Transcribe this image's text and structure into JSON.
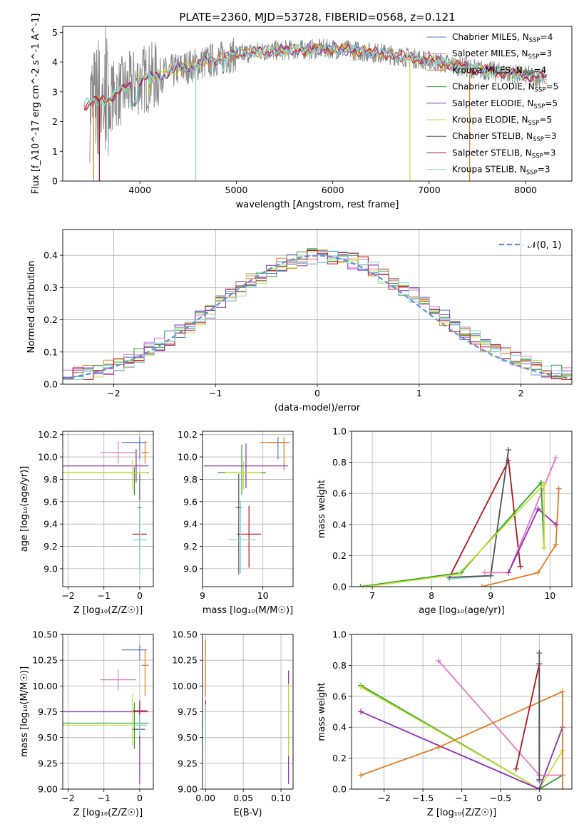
{
  "figure": {
    "title": "PLATE=2360, MJD=53728, FIBERID=0568, z=0.121"
  },
  "colors": {
    "chabrier_miles": "#4c78c8",
    "salpeter_miles": "#e377c2",
    "kroupa_miles": "#e07b22",
    "chabrier_elodie": "#2ca02c",
    "salpeter_elodie": "#8e2bb5",
    "kroupa_elodie": "#c6e036",
    "chabrier_stelib": "#555555",
    "salpeter_stelib": "#b5121b",
    "kroupa_stelib": "#7fd6e0",
    "data_grey": "#888888",
    "normal_curve": "#5b8fd8"
  },
  "chart_data": [
    {
      "id": "spectrum",
      "type": "line",
      "title": "PLATE=2360, MJD=53728, FIBERID=0568, z=0.121",
      "xlabel": "wavelength [Angstrom, rest frame]",
      "ylabel": "Flux [f_λ10^-17 erg cm^-2 s^-1 A^-1]",
      "xlim": [
        3200,
        8480
      ],
      "ylim": [
        0,
        5.2
      ],
      "xticks": [
        4000,
        5000,
        6000,
        7000,
        8000
      ],
      "yticks": [
        0,
        1,
        2,
        3,
        4,
        5
      ],
      "grid": false,
      "legend_position": "top-right",
      "legend": [
        {
          "label": "Chabrier MILES, N",
          "sub": "SSP",
          "suffix": "=4"
        },
        {
          "label": "Salpeter MILES, N",
          "sub": "SSP",
          "suffix": "=3"
        },
        {
          "label": "Kroupa MILES, N",
          "sub": "SSP",
          "suffix": "=4"
        },
        {
          "label": "Chabrier ELODIE, N",
          "sub": "SSP",
          "suffix": "=5"
        },
        {
          "label": "Salpeter ELODIE, N",
          "sub": "SSP",
          "suffix": "=5"
        },
        {
          "label": "Kroupa ELODIE, N",
          "sub": "SSP",
          "suffix": "=5"
        },
        {
          "label": "Chabrier STELIB, N",
          "sub": "SSP",
          "suffix": "=3"
        },
        {
          "label": "Salpeter STELIB, N",
          "sub": "SSP",
          "suffix": "=3"
        },
        {
          "label": "Kroupa STELIB, N",
          "sub": "SSP",
          "suffix": "=3"
        }
      ],
      "continuum_points": [
        [
          3400,
          2.55
        ],
        [
          3600,
          2.7
        ],
        [
          3800,
          3.0
        ],
        [
          4000,
          3.4
        ],
        [
          4200,
          3.55
        ],
        [
          4500,
          3.85
        ],
        [
          4800,
          4.1
        ],
        [
          5000,
          4.25
        ],
        [
          5200,
          4.35
        ],
        [
          5500,
          4.4
        ],
        [
          6000,
          4.45
        ],
        [
          6500,
          4.3
        ],
        [
          7000,
          4.05
        ],
        [
          7500,
          3.75
        ],
        [
          8000,
          3.55
        ],
        [
          8200,
          3.45
        ]
      ]
    },
    {
      "id": "residuals",
      "type": "line",
      "xlabel": "(data-model)/error",
      "ylabel": "Normed distribution",
      "xlim": [
        -2.5,
        2.5
      ],
      "ylim": [
        0,
        0.48
      ],
      "xticks": [
        -2,
        -1,
        0,
        1,
        2
      ],
      "yticks": [
        0.0,
        0.1,
        0.2,
        0.3,
        0.4
      ],
      "grid": true,
      "legend_position": "top-right",
      "legend": [
        {
          "label": "𝒩(0, 1)"
        }
      ],
      "bin_width": 0.1
    },
    {
      "id": "age_vs_Z",
      "type": "scatter",
      "xlabel": "Z [log₁₀(Z/Z☉)]",
      "ylabel": "age  [log₁₀(age/yr)]",
      "xlim": [
        -2.15,
        0.38
      ],
      "ylim": [
        8.84,
        10.23
      ],
      "xticks": [
        -2,
        -1,
        0
      ],
      "yticks": [
        9.0,
        9.2,
        9.4,
        9.6,
        9.8,
        10.0,
        10.2
      ],
      "grid": true,
      "points": [
        {
          "model": "chabrier_miles",
          "x": 0.0,
          "y": 10.13,
          "xerr": [
            0.5,
            0.2
          ],
          "yerr": [
            0.15,
            0.05
          ]
        },
        {
          "model": "salpeter_miles",
          "x": -0.6,
          "y": 10.04,
          "xerr": [
            0.5,
            0.5
          ],
          "yerr": [
            0.1,
            0.1
          ]
        },
        {
          "model": "kroupa_miles",
          "x": 0.15,
          "y": 10.04,
          "xerr": [
            0.1,
            0.1
          ],
          "yerr": [
            0.1,
            0.1
          ]
        },
        {
          "model": "chabrier_elodie",
          "x": -0.15,
          "y": 9.86,
          "xerr": [
            2.1,
            0.4
          ],
          "yerr": [
            0.2,
            0.05
          ]
        },
        {
          "model": "salpeter_elodie",
          "x": -0.1,
          "y": 9.92,
          "xerr": [
            2.1,
            0.35
          ],
          "yerr": [
            0.15,
            0.15
          ]
        },
        {
          "model": "kroupa_elodie",
          "x": -0.2,
          "y": 9.86,
          "xerr": [
            2.0,
            0.4
          ],
          "yerr": [
            0.15,
            0.12
          ]
        },
        {
          "model": "chabrier_stelib",
          "x": 0.0,
          "y": 9.55,
          "xerr": [
            0.05,
            0.05
          ],
          "yerr": [
            0.35,
            0.3
          ]
        },
        {
          "model": "salpeter_stelib",
          "x": 0.0,
          "y": 9.31,
          "xerr": [
            0.2,
            0.2
          ],
          "yerr": [
            0.3,
            0.25
          ]
        },
        {
          "model": "kroupa_stelib",
          "x": 0.0,
          "y": 9.26,
          "xerr": [
            0.2,
            0.2
          ],
          "yerr": [
            0.3,
            0.35
          ]
        }
      ]
    },
    {
      "id": "age_vs_mass",
      "type": "scatter",
      "xlabel": "mass [log₁₀(M/M☉)]",
      "ylabel": "",
      "xlim": [
        9.0,
        10.5
      ],
      "ylim": [
        8.84,
        10.23
      ],
      "xticks": [
        9,
        10
      ],
      "yticks": [
        9.0,
        9.2,
        9.4,
        9.6,
        9.8,
        10.0,
        10.2
      ],
      "grid": true,
      "points": [
        {
          "model": "chabrier_miles",
          "x": 10.25,
          "y": 10.13,
          "xerr": [
            0.15,
            0.1
          ],
          "yerr": [
            0.15,
            0.05
          ]
        },
        {
          "model": "kroupa_miles",
          "x": 10.35,
          "y": 10.13,
          "xerr": [
            0.4,
            0.1
          ],
          "yerr": [
            0.25,
            0.05
          ]
        },
        {
          "model": "chabrier_elodie",
          "x": 9.65,
          "y": 9.86,
          "xerr": [
            0.4,
            0.4
          ],
          "yerr": [
            0.2,
            0.25
          ]
        },
        {
          "model": "salpeter_elodie",
          "x": 9.72,
          "y": 9.92,
          "xerr": [
            0.7,
            0.7
          ],
          "yerr": [
            0.2,
            0.2
          ]
        },
        {
          "model": "kroupa_elodie",
          "x": 9.68,
          "y": 9.86,
          "xerr": [
            0.3,
            0.3
          ],
          "yerr": [
            0.15,
            0.1
          ]
        },
        {
          "model": "chabrier_stelib",
          "x": 9.6,
          "y": 9.55,
          "xerr": [
            0.05,
            0.05
          ],
          "yerr": [
            0.6,
            0.3
          ]
        },
        {
          "model": "salpeter_stelib",
          "x": 9.77,
          "y": 9.31,
          "xerr": [
            0.2,
            0.2
          ],
          "yerr": [
            0.3,
            0.25
          ]
        },
        {
          "model": "kroupa_stelib",
          "x": 9.63,
          "y": 9.26,
          "xerr": [
            0.2,
            0.25
          ],
          "yerr": [
            0.3,
            0.35
          ]
        }
      ]
    },
    {
      "id": "weight_vs_age",
      "type": "line",
      "xlabel": "age  [log₁₀(age/yr)]",
      "ylabel": "mass weight",
      "xlim": [
        6.65,
        10.37
      ],
      "ylim": [
        0,
        1
      ],
      "xticks": [
        7,
        8,
        9,
        10
      ],
      "yticks": [
        0.0,
        0.2,
        0.4,
        0.6,
        0.8,
        1.0
      ],
      "grid": true,
      "series": [
        {
          "model": "salpeter_stelib",
          "x": [
            8.3,
            9.3,
            9.5
          ],
          "y": [
            0.06,
            0.81,
            0.13
          ]
        },
        {
          "model": "kroupa_stelib",
          "x": [
            8.3,
            9.0,
            9.3
          ],
          "y": [
            0.05,
            0.07,
            0.88
          ]
        },
        {
          "model": "chabrier_stelib",
          "x": [
            8.3,
            9.0,
            9.3
          ],
          "y": [
            0.06,
            0.07,
            0.88
          ]
        },
        {
          "model": "salpeter_miles",
          "x": [
            8.9,
            9.3,
            10.1
          ],
          "y": [
            0.09,
            0.09,
            0.83
          ]
        },
        {
          "model": "kroupa_miles",
          "x": [
            8.85,
            9.8,
            10.1,
            10.15
          ],
          "y": [
            0.0,
            0.09,
            0.27,
            0.63
          ]
        },
        {
          "model": "salpeter_elodie",
          "x": [
            9.3,
            9.8,
            10.1
          ],
          "y": [
            0.09,
            0.5,
            0.4
          ]
        },
        {
          "model": "chabrier_elodie",
          "x": [
            6.8,
            8.5,
            9.85,
            9.9
          ],
          "y": [
            0.0,
            0.09,
            0.67,
            0.25
          ]
        },
        {
          "model": "kroupa_elodie",
          "x": [
            6.9,
            8.45,
            9.9,
            9.9
          ],
          "y": [
            0.0,
            0.08,
            0.66,
            0.25
          ]
        }
      ]
    },
    {
      "id": "mass_vs_Z",
      "type": "scatter",
      "xlabel": "Z [log₁₀(Z/Z☉)]",
      "ylabel": "mass [log₁₀(M/M☉)]",
      "xlim": [
        -2.15,
        0.38
      ],
      "ylim": [
        9.0,
        10.5
      ],
      "xticks": [
        -2,
        -1,
        0
      ],
      "yticks": [
        9.0,
        9.25,
        9.5,
        9.75,
        10.0,
        10.25,
        10.5
      ],
      "grid": true,
      "points": [
        {
          "model": "chabrier_miles",
          "x": 0.0,
          "y": 10.35,
          "xerr": [
            0.5,
            0.2
          ],
          "yerr": [
            0.1,
            0.05
          ]
        },
        {
          "model": "salpeter_miles",
          "x": -0.6,
          "y": 10.06,
          "xerr": [
            0.5,
            0.5
          ],
          "yerr": [
            0.1,
            0.1
          ]
        },
        {
          "model": "kroupa_miles",
          "x": 0.15,
          "y": 10.2,
          "xerr": [
            0.1,
            0.1
          ],
          "yerr": [
            0.3,
            0.15
          ]
        },
        {
          "model": "chabrier_elodie",
          "x": -0.15,
          "y": 9.64,
          "xerr": [
            2.1,
            0.4
          ],
          "yerr": [
            0.25,
            0.2
          ]
        },
        {
          "model": "salpeter_elodie",
          "x": 0.0,
          "y": 9.75,
          "xerr": [
            2.2,
            0.25
          ],
          "yerr": [
            0.7,
            0.1
          ]
        },
        {
          "model": "kroupa_elodie",
          "x": -0.2,
          "y": 9.62,
          "xerr": [
            2.0,
            0.4
          ],
          "yerr": [
            0.2,
            0.3
          ]
        },
        {
          "model": "chabrier_stelib",
          "x": 0.0,
          "y": 9.58,
          "xerr": [
            0.2,
            0.15
          ],
          "yerr": [
            0.15,
            0.15
          ]
        },
        {
          "model": "salpeter_stelib",
          "x": 0.0,
          "y": 9.76,
          "xerr": [
            0.2,
            0.2
          ],
          "yerr": [
            0.1,
            0.1
          ]
        },
        {
          "model": "kroupa_stelib",
          "x": 0.0,
          "y": 9.62,
          "xerr": [
            0.2,
            0.2
          ],
          "yerr": [
            0.1,
            0.1
          ]
        }
      ]
    },
    {
      "id": "mass_vs_EBV",
      "type": "scatter",
      "xlabel": "E(B-V)",
      "ylabel": "",
      "xlim": [
        -0.004,
        0.116
      ],
      "ylim": [
        9.0,
        10.5
      ],
      "xticks": [
        0.0,
        0.05,
        0.1
      ],
      "xtick_labels": [
        "0.00",
        "0.05",
        "0.10"
      ],
      "yticks": [
        9.0,
        9.25,
        9.5,
        9.75,
        10.0,
        10.25,
        10.5
      ],
      "grid": true,
      "points": [
        {
          "model": "kroupa_miles",
          "x": 0.0,
          "y": 10.2,
          "xerr": [
            0,
            0
          ],
          "yerr": [
            0.3,
            0.25
          ]
        },
        {
          "model": "salpeter_stelib",
          "x": 0.0,
          "y": 9.76,
          "xerr": [
            0,
            0
          ],
          "yerr": [
            0.1,
            0.1
          ]
        },
        {
          "model": "kroupa_stelib",
          "x": 0.0,
          "y": 9.62,
          "xerr": [
            0,
            0
          ],
          "yerr": [
            0.2,
            0.2
          ]
        },
        {
          "model": "salpeter_elodie",
          "x": 0.11,
          "y": 9.55,
          "xerr": [
            0,
            0
          ],
          "yerr": [
            0.5,
            0.6
          ]
        },
        {
          "model": "kroupa_elodie",
          "x": 0.11,
          "y": 9.62,
          "xerr": [
            0,
            0
          ],
          "yerr": [
            0.3,
            0.4
          ]
        }
      ]
    },
    {
      "id": "weight_vs_Z",
      "type": "line",
      "xlabel": "Z [log₁₀(Z/Z☉)]",
      "ylabel": "mass weight",
      "xlim": [
        -2.42,
        0.42
      ],
      "ylim": [
        0,
        1
      ],
      "xticks": [
        -2.0,
        -1.5,
        -1.0,
        -0.5,
        0.0
      ],
      "yticks": [
        0.0,
        0.2,
        0.4,
        0.6,
        0.8,
        1.0
      ],
      "grid": true,
      "series": [
        {
          "model": "chabrier_elodie",
          "x": [
            -2.3,
            0.0,
            0.3
          ],
          "y": [
            0.67,
            0.0,
            0.09
          ]
        },
        {
          "model": "kroupa_elodie",
          "x": [
            -2.3,
            0.0,
            0.3
          ],
          "y": [
            0.66,
            0.0,
            0.25
          ]
        },
        {
          "model": "salpeter_elodie",
          "x": [
            -2.3,
            0.0,
            0.3
          ],
          "y": [
            0.5,
            0.0,
            0.4
          ]
        },
        {
          "model": "salpeter_miles",
          "x": [
            -1.3,
            0.0,
            0.3
          ],
          "y": [
            0.83,
            0.09,
            0.09
          ]
        },
        {
          "model": "kroupa_miles",
          "x": [
            -2.3,
            -1.3,
            0.3,
            0.3
          ],
          "y": [
            0.09,
            0.27,
            0.63,
            0.0
          ]
        },
        {
          "model": "salpeter_stelib",
          "x": [
            -0.3,
            0.0,
            0.0
          ],
          "y": [
            0.13,
            0.81,
            0.06
          ]
        },
        {
          "model": "kroupa_stelib",
          "x": [
            0.0,
            0.0
          ],
          "y": [
            0.05,
            0.88
          ]
        },
        {
          "model": "chabrier_stelib",
          "x": [
            0.0,
            0.0
          ],
          "y": [
            0.06,
            0.88
          ]
        }
      ]
    }
  ]
}
